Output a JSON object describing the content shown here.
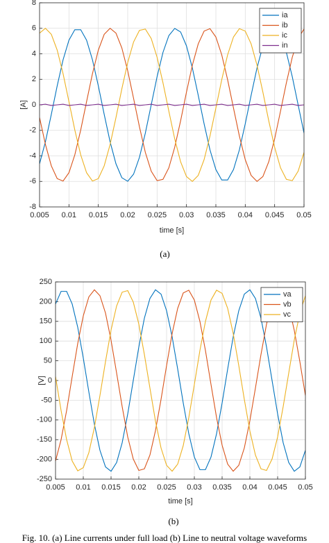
{
  "chart_data": [
    {
      "type": "line",
      "x_label": "time [s]",
      "y_label": "[A]",
      "caption": "(a)",
      "x": [
        0.005,
        0.006,
        0.007,
        0.008,
        0.009,
        0.01,
        0.011,
        0.012,
        0.013,
        0.014,
        0.015,
        0.016,
        0.017,
        0.018,
        0.019,
        0.02,
        0.021,
        0.022,
        0.023,
        0.024,
        0.025,
        0.026,
        0.027,
        0.028,
        0.029,
        0.03,
        0.031,
        0.032,
        0.033,
        0.034,
        0.035,
        0.036,
        0.037,
        0.038,
        0.039,
        0.04,
        0.041,
        0.042,
        0.043,
        0.044,
        0.045,
        0.046,
        0.047,
        0.048,
        0.049,
        0.05
      ],
      "series": [
        {
          "name": "ia",
          "color": "#0072bd",
          "values": [
            -4.62,
            -2.89,
            -0.75,
            1.49,
            3.53,
            5.07,
            5.89,
            5.89,
            5.07,
            3.53,
            1.49,
            -0.75,
            -2.89,
            -4.62,
            -5.71,
            -5.99,
            -5.43,
            -4.11,
            -2.21,
            0,
            2.21,
            4.11,
            5.43,
            5.99,
            5.71,
            4.62,
            2.89,
            0.75,
            -1.49,
            -3.53,
            -5.07,
            -5.89,
            -5.89,
            -5.07,
            -3.53,
            -1.49,
            0.75,
            2.89,
            4.62,
            5.71,
            5.99,
            5.43,
            4.11,
            2.21,
            0,
            -2.21
          ]
        },
        {
          "name": "ib",
          "color": "#d95319",
          "values": [
            -1.0,
            -3.11,
            -4.78,
            -5.78,
            -5.97,
            -5.32,
            -3.92,
            -1.97,
            0.25,
            2.44,
            4.29,
            5.53,
            6.0,
            5.62,
            4.46,
            2.67,
            0.5,
            -1.73,
            -3.73,
            -5.2,
            -5.94,
            -5.84,
            -4.93,
            -3.32,
            -1.25,
            1.0,
            3.11,
            4.78,
            5.78,
            5.97,
            5.32,
            3.92,
            1.97,
            -0.25,
            -2.44,
            -4.29,
            -5.53,
            -6.0,
            -5.62,
            -4.46,
            -2.67,
            -0.5,
            1.73,
            3.73,
            5.2,
            5.94
          ]
        },
        {
          "name": "ic",
          "color": "#edb120",
          "values": [
            5.62,
            6.0,
            5.53,
            4.29,
            2.44,
            0.25,
            -1.97,
            -3.92,
            -5.32,
            -5.97,
            -5.78,
            -4.78,
            -3.11,
            -1.0,
            1.25,
            3.32,
            4.93,
            5.84,
            5.94,
            5.2,
            3.73,
            1.73,
            -0.5,
            -2.67,
            -4.46,
            -5.62,
            -6.0,
            -5.53,
            -4.29,
            -2.44,
            -0.25,
            1.97,
            3.92,
            5.32,
            5.97,
            5.78,
            4.78,
            3.11,
            1.0,
            -1.25,
            -3.32,
            -4.93,
            -5.84,
            -5.94,
            -5.2,
            -3.73
          ]
        },
        {
          "name": "in",
          "color": "#7e2f8e",
          "values": [
            0,
            0.05,
            -0.05,
            0,
            0.05,
            -0.05,
            0,
            0.05,
            -0.05,
            0,
            0.05,
            -0.05,
            0,
            0.05,
            -0.05,
            0,
            0.05,
            -0.05,
            0,
            0.05,
            -0.05,
            0,
            0.05,
            -0.05,
            0,
            0.05,
            -0.05,
            0,
            0.05,
            -0.05,
            0,
            0.05,
            -0.05,
            0,
            0.05,
            -0.05,
            0,
            0.05,
            -0.05,
            0,
            0.05,
            -0.05,
            0,
            0.05,
            -0.05,
            0
          ]
        }
      ],
      "xlim": [
        0.005,
        0.05
      ],
      "xticks": [
        0.005,
        0.01,
        0.015,
        0.02,
        0.025,
        0.03,
        0.035,
        0.04,
        0.045,
        0.05
      ],
      "ylim": [
        -8,
        8
      ],
      "yticks": [
        -8,
        -6,
        -4,
        -2,
        0,
        2,
        4,
        6,
        8
      ],
      "grid": true,
      "legend": "upper right"
    },
    {
      "type": "line",
      "x_label": "time [s]",
      "y_label": "[V]",
      "caption": "(b)",
      "x": [
        0.005,
        0.006,
        0.007,
        0.008,
        0.009,
        0.01,
        0.011,
        0.012,
        0.013,
        0.014,
        0.015,
        0.016,
        0.017,
        0.018,
        0.019,
        0.02,
        0.021,
        0.022,
        0.023,
        0.024,
        0.025,
        0.026,
        0.027,
        0.028,
        0.029,
        0.03,
        0.031,
        0.032,
        0.033,
        0.034,
        0.035,
        0.036,
        0.037,
        0.038,
        0.039,
        0.04,
        0.041,
        0.042,
        0.043,
        0.044,
        0.045,
        0.046,
        0.047,
        0.048,
        0.049,
        0.05
      ],
      "series": [
        {
          "name": "va",
          "color": "#0072bd",
          "values": [
            194,
            226,
            226,
            194,
            135,
            57,
            -29,
            -111,
            -177,
            -219,
            -230,
            -208,
            -158,
            -85,
            0,
            85,
            158,
            208,
            230,
            219,
            177,
            111,
            29,
            -57,
            -135,
            -194,
            -226,
            -226,
            -194,
            -135,
            -57,
            29,
            111,
            177,
            219,
            230,
            208,
            158,
            85,
            0,
            -85,
            -158,
            -208,
            -230,
            -219,
            -177
          ]
        },
        {
          "name": "vb",
          "color": "#d95319",
          "values": [
            -204,
            -150,
            -76,
            10,
            94,
            164,
            212,
            230,
            215,
            171,
            102,
            19,
            -66,
            -143,
            -199,
            -228,
            -224,
            -189,
            -127,
            -48,
            38,
            119,
            183,
            222,
            229,
            204,
            150,
            76,
            -10,
            -94,
            -164,
            -212,
            -230,
            -215,
            -171,
            -102,
            -19,
            66,
            143,
            199,
            228,
            224,
            189,
            127,
            48,
            -38
          ]
        },
        {
          "name": "vc",
          "color": "#edb120",
          "values": [
            10,
            -76,
            -150,
            -204,
            -229,
            -221,
            -183,
            -119,
            -38,
            48,
            128,
            189,
            224,
            228,
            199,
            143,
            66,
            -19,
            -103,
            -171,
            -215,
            -230,
            -212,
            -165,
            -94,
            -10,
            76,
            150,
            204,
            229,
            221,
            183,
            119,
            38,
            -48,
            -128,
            -189,
            -224,
            -228,
            -199,
            -143,
            -66,
            19,
            103,
            171,
            215
          ]
        }
      ],
      "xlim": [
        0.005,
        0.05
      ],
      "xticks": [
        0.005,
        0.01,
        0.015,
        0.02,
        0.025,
        0.03,
        0.035,
        0.04,
        0.045,
        0.05
      ],
      "ylim": [
        -250,
        250
      ],
      "yticks": [
        -250,
        -200,
        -150,
        -100,
        -50,
        0,
        50,
        100,
        150,
        200,
        250
      ],
      "grid": true,
      "legend": "upper right"
    }
  ],
  "figure_caption": "Fig. 10. (a) Line currents under full load (b) Line to neutral voltage waveforms"
}
